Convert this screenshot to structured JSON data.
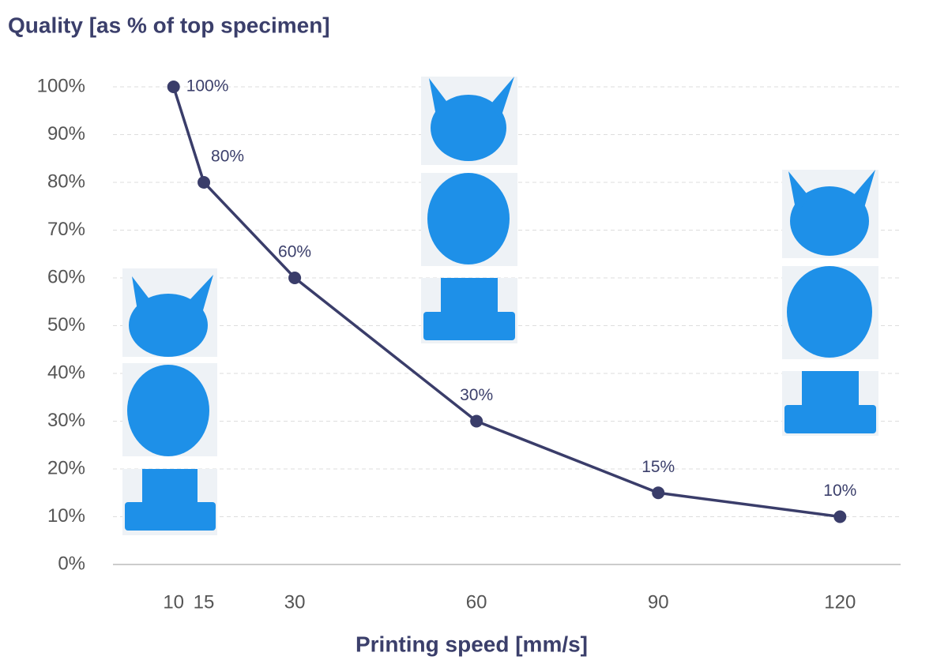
{
  "chart_data": {
    "type": "line",
    "title": "Quality [as % of top specimen]",
    "x_label": "Printing speed [mm/s]",
    "x": [
      10,
      15,
      30,
      60,
      90,
      120
    ],
    "values": [
      100,
      80,
      60,
      30,
      15,
      10
    ],
    "value_labels": [
      "100%",
      "80%",
      "60%",
      "30%",
      "15%",
      "10%"
    ],
    "color": "#3a3d6a",
    "xlim": [
      0,
      130
    ],
    "xticks": [
      10,
      15,
      30,
      60,
      90,
      120
    ],
    "ylim": [
      0,
      100
    ],
    "yticks": [
      {
        "value": 0,
        "label": "0%"
      },
      {
        "value": 10,
        "label": "10%"
      },
      {
        "value": 20,
        "label": "20%"
      },
      {
        "value": 30,
        "label": "30%"
      },
      {
        "value": 40,
        "label": "40%"
      },
      {
        "value": 50,
        "label": "50%"
      },
      {
        "value": 60,
        "label": "60%"
      },
      {
        "value": 70,
        "label": "70%"
      },
      {
        "value": 80,
        "label": "80%"
      },
      {
        "value": 90,
        "label": "90%"
      },
      {
        "value": 100,
        "label": "100%"
      }
    ],
    "grid": true
  }
}
